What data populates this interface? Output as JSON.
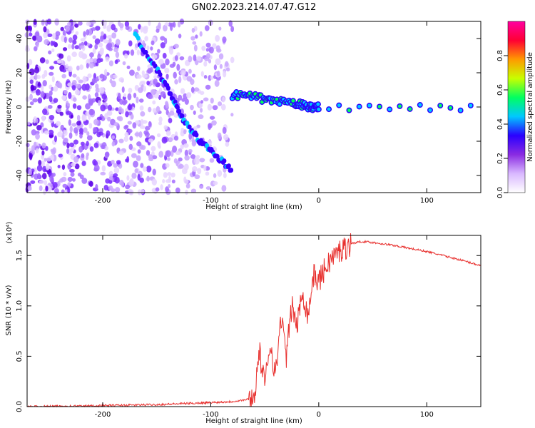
{
  "title": "GN02.2023.214.07.47.G12",
  "chart_data": [
    {
      "type": "heatmap",
      "xlabel": "Height of straight line (km)",
      "ylabel": "Frequency (Hz)",
      "xlim": [
        -270,
        150
      ],
      "ylim": [
        -50,
        50
      ],
      "xticks": [
        -200,
        -100,
        0,
        100
      ],
      "yticks": [
        -40,
        -20,
        0,
        20,
        40
      ],
      "colorbar": {
        "label": "Normalized spectral amplitude",
        "range": [
          0,
          1
        ],
        "ticks": [
          0.0,
          0.2,
          0.4,
          0.6,
          0.8
        ],
        "colors": [
          "#ffffff",
          "#d9b8ff",
          "#8a2be2",
          "#2a00ff",
          "#00c8ff",
          "#00ff60",
          "#c8ff00",
          "#ff9a00",
          "#ff0033",
          "#ff00a0"
        ]
      },
      "features": {
        "noise_region_x": [
          -270,
          -80
        ],
        "descending_trace": [
          [
            -170,
            42
          ],
          [
            -150,
            22
          ],
          [
            -135,
            5
          ],
          [
            -125,
            -8
          ],
          [
            -110,
            -20
          ],
          [
            -95,
            -28
          ],
          [
            -80,
            -38
          ]
        ],
        "tone_trace": [
          [
            -80,
            7
          ],
          [
            -60,
            6
          ],
          [
            -40,
            3
          ],
          [
            -20,
            2
          ],
          [
            -10,
            0
          ],
          [
            0,
            0
          ],
          [
            150,
            0
          ]
        ]
      }
    },
    {
      "type": "line",
      "xlabel": "Height of straight line (km)",
      "ylabel": "SNR (10 * v/v)",
      "y_multiplier": "(x10⁴)",
      "xlim": [
        -270,
        150
      ],
      "ylim": [
        0,
        1.7
      ],
      "xticks": [
        -200,
        -100,
        0,
        100
      ],
      "yticks": [
        0.0,
        0.5,
        1.0,
        1.5
      ],
      "color": "#e8312f",
      "series": [
        {
          "x": [
            -270,
            -200,
            -150,
            -100,
            -80,
            -60,
            -55,
            -50,
            -45,
            -40,
            -35,
            -30,
            -25,
            -20,
            -15,
            -10,
            -5,
            0,
            10,
            20,
            30,
            40,
            50,
            70,
            100,
            130,
            150
          ],
          "y": [
            0.0,
            0.01,
            0.02,
            0.04,
            0.05,
            0.08,
            0.55,
            0.2,
            0.65,
            0.3,
            0.9,
            0.5,
            1.0,
            0.8,
            1.15,
            0.9,
            1.3,
            1.25,
            1.45,
            1.55,
            1.62,
            1.64,
            1.63,
            1.6,
            1.54,
            1.46,
            1.4
          ]
        }
      ]
    }
  ]
}
